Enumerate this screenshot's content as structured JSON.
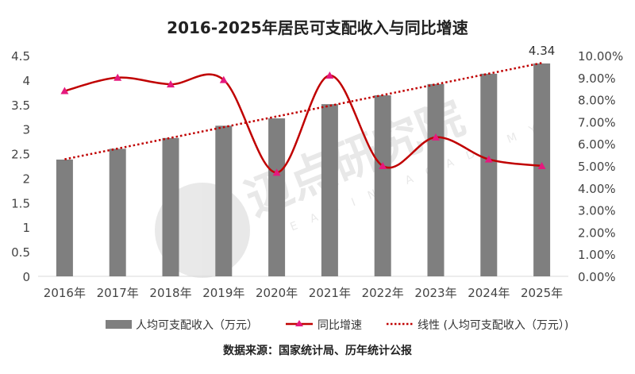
{
  "chart_data": {
    "type": "bar+line",
    "title": "2016-2025年居民可支配收入与同比增速",
    "categories": [
      "2016年",
      "2017年",
      "2018年",
      "2019年",
      "2020年",
      "2021年",
      "2022年",
      "2023年",
      "2024年",
      "2025年"
    ],
    "series": [
      {
        "name": "人均可支配收入（万元）",
        "type": "bar",
        "axis": "left",
        "color": "#7f7f7f",
        "values": [
          2.38,
          2.6,
          2.82,
          3.07,
          3.22,
          3.51,
          3.69,
          3.92,
          4.13,
          4.34
        ]
      },
      {
        "name": "同比增速",
        "type": "line",
        "axis": "right",
        "color": "#c00000",
        "marker_color": "#e5197e",
        "marker": "triangle",
        "values": [
          8.4,
          9.0,
          8.7,
          8.9,
          4.7,
          9.1,
          5.0,
          6.3,
          5.3,
          5.0
        ]
      },
      {
        "name": "线性 (人均可支配收入（万元）)",
        "type": "trendline",
        "axis": "left",
        "color": "#c00000",
        "style": "dotted"
      }
    ],
    "data_labels": [
      {
        "category": "2025年",
        "text": "4.34"
      }
    ],
    "left_axis": {
      "range": [
        0,
        4.5
      ],
      "ticks": [
        "0",
        "0.5",
        "1",
        "1.5",
        "2",
        "2.5",
        "3",
        "3.5",
        "4",
        "4.5"
      ]
    },
    "right_axis": {
      "range": [
        0,
        10
      ],
      "unit": "%",
      "ticks": [
        "0.00%",
        "1.00%",
        "2.00%",
        "3.00%",
        "4.00%",
        "5.00%",
        "6.00%",
        "7.00%",
        "8.00%",
        "9.00%",
        "10.00%"
      ]
    },
    "grid": false,
    "legend_position": "bottom"
  },
  "source": "数据来源：国家统计局、历年统计公报",
  "watermark": {
    "cn": "迈点研究院",
    "en": "MEADIN ACADEMY"
  }
}
